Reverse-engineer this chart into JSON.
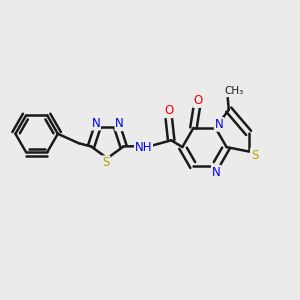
{
  "background_color": "#ebebeb",
  "bond_color": "#1a1a1a",
  "atom_colors": {
    "N": "#0000ee",
    "S": "#b8a000",
    "O": "#ee0000",
    "C": "#1a1a1a"
  },
  "figsize": [
    3.0,
    3.0
  ],
  "dpi": 100
}
